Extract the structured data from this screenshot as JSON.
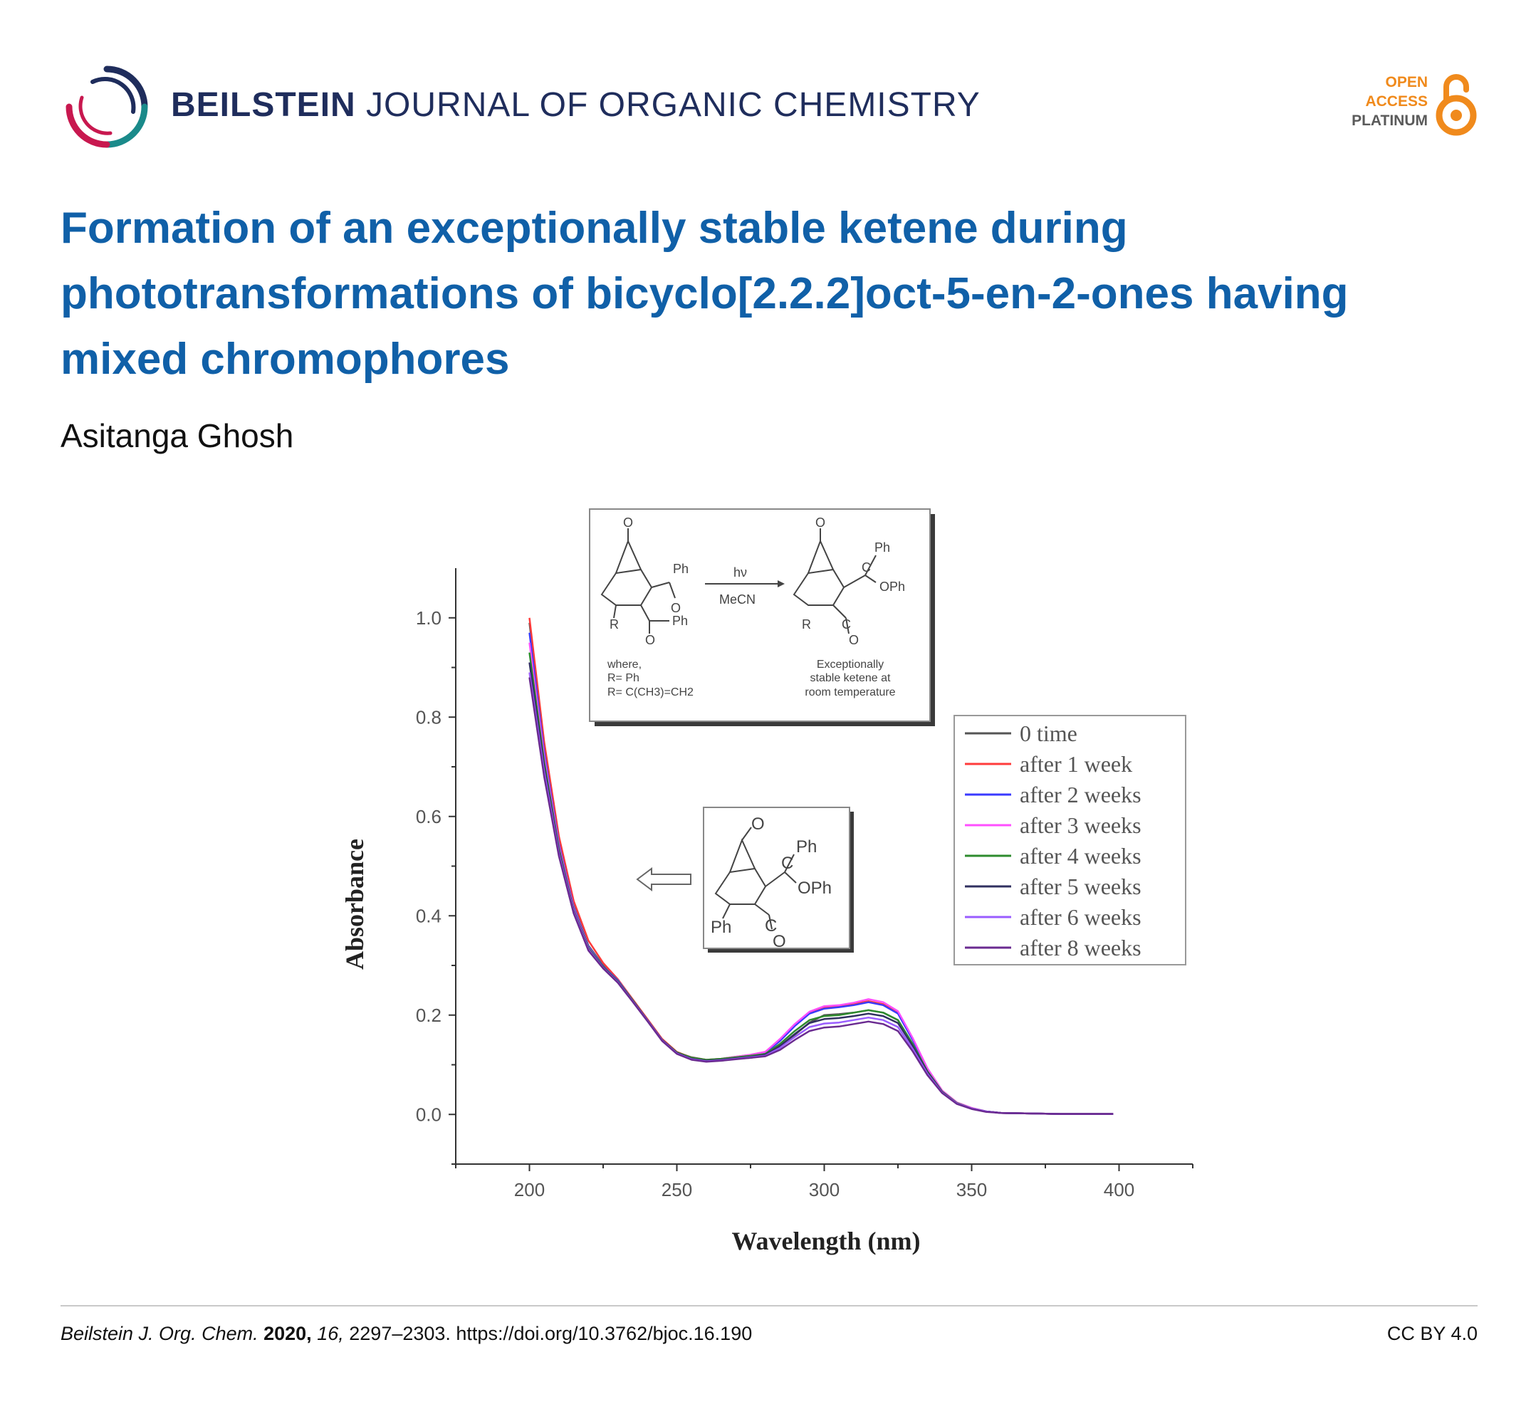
{
  "header": {
    "journal_bold": "BEILSTEIN",
    "journal_light": "JOURNAL OF ORGANIC CHEMISTRY",
    "open_access": [
      "OPEN",
      "ACCESS",
      "PLATINUM"
    ]
  },
  "article": {
    "title": "Formation of an exceptionally stable ketene during phototransformations of bicyclo[2.2.2]oct-5-en-2-ones having mixed chromophores",
    "author": "Asitanga Ghosh"
  },
  "scheme": {
    "reagent_top": "hν",
    "reagent_bottom": "MeCN",
    "where_label": "where,",
    "r1": "R= Ph",
    "r2": "R= C(CH3)=CH2",
    "product_note": [
      "Exceptionally",
      "stable ketene at",
      "room temperature"
    ],
    "labels": {
      "O": "O",
      "Ph": "Ph",
      "R": "R",
      "C": "C",
      "OPh": "OPh"
    }
  },
  "chart_data": {
    "type": "line",
    "xlabel": "Wavelength (nm)",
    "ylabel": "Absorbance",
    "xlim": [
      175,
      425
    ],
    "ylim": [
      -0.1,
      1.1
    ],
    "xticks": [
      200,
      250,
      300,
      350,
      400
    ],
    "yticks": [
      0.0,
      0.2,
      0.4,
      0.6,
      0.8,
      1.0
    ],
    "x": [
      200,
      205,
      210,
      215,
      220,
      225,
      230,
      235,
      240,
      245,
      250,
      255,
      260,
      265,
      270,
      275,
      280,
      285,
      290,
      295,
      300,
      305,
      310,
      315,
      320,
      325,
      330,
      335,
      340,
      345,
      350,
      355,
      360,
      370,
      380,
      390,
      398
    ],
    "legend_position": "right",
    "series": [
      {
        "name": "0 time",
        "color": "#555555",
        "values": [
          0.99,
          0.74,
          0.55,
          0.42,
          0.34,
          0.3,
          0.27,
          0.23,
          0.19,
          0.15,
          0.125,
          0.115,
          0.11,
          0.11,
          0.112,
          0.114,
          0.118,
          0.135,
          0.16,
          0.185,
          0.2,
          0.202,
          0.205,
          0.21,
          0.205,
          0.19,
          0.14,
          0.085,
          0.045,
          0.022,
          0.012,
          0.006,
          0.003,
          0.002,
          0.001,
          0.001,
          0.001
        ]
      },
      {
        "name": "after 1 week",
        "color": "#ff3b3b",
        "values": [
          1.0,
          0.75,
          0.56,
          0.43,
          0.35,
          0.305,
          0.272,
          0.232,
          0.192,
          0.152,
          0.126,
          0.114,
          0.11,
          0.112,
          0.116,
          0.12,
          0.126,
          0.15,
          0.18,
          0.205,
          0.215,
          0.218,
          0.223,
          0.228,
          0.222,
          0.205,
          0.152,
          0.092,
          0.048,
          0.024,
          0.013,
          0.006,
          0.003,
          0.002,
          0.001,
          0.001,
          0.001
        ]
      },
      {
        "name": "after 2 weeks",
        "color": "#3a3aff",
        "values": [
          0.97,
          0.73,
          0.545,
          0.418,
          0.338,
          0.298,
          0.27,
          0.23,
          0.19,
          0.15,
          0.124,
          0.112,
          0.108,
          0.11,
          0.114,
          0.118,
          0.124,
          0.148,
          0.178,
          0.203,
          0.213,
          0.216,
          0.22,
          0.226,
          0.22,
          0.203,
          0.15,
          0.09,
          0.047,
          0.023,
          0.012,
          0.006,
          0.003,
          0.002,
          0.001,
          0.001,
          0.001
        ]
      },
      {
        "name": "after 3 weeks",
        "color": "#ff4fff",
        "values": [
          0.95,
          0.72,
          0.54,
          0.415,
          0.336,
          0.297,
          0.268,
          0.229,
          0.19,
          0.15,
          0.124,
          0.113,
          0.11,
          0.112,
          0.116,
          0.12,
          0.126,
          0.152,
          0.182,
          0.207,
          0.218,
          0.22,
          0.225,
          0.232,
          0.226,
          0.208,
          0.154,
          0.093,
          0.048,
          0.024,
          0.013,
          0.006,
          0.003,
          0.002,
          0.001,
          0.001,
          0.001
        ]
      },
      {
        "name": "after 4 weeks",
        "color": "#2e8b2e",
        "values": [
          0.93,
          0.71,
          0.535,
          0.412,
          0.335,
          0.297,
          0.268,
          0.23,
          0.19,
          0.15,
          0.125,
          0.114,
          0.11,
          0.112,
          0.115,
          0.118,
          0.122,
          0.142,
          0.168,
          0.19,
          0.198,
          0.2,
          0.205,
          0.21,
          0.205,
          0.19,
          0.142,
          0.087,
          0.046,
          0.023,
          0.012,
          0.006,
          0.003,
          0.002,
          0.001,
          0.001,
          0.001
        ]
      },
      {
        "name": "after 5 weeks",
        "color": "#303060",
        "values": [
          0.91,
          0.7,
          0.53,
          0.41,
          0.333,
          0.296,
          0.267,
          0.229,
          0.19,
          0.15,
          0.124,
          0.112,
          0.108,
          0.11,
          0.113,
          0.116,
          0.12,
          0.138,
          0.162,
          0.184,
          0.192,
          0.194,
          0.198,
          0.203,
          0.198,
          0.184,
          0.138,
          0.085,
          0.045,
          0.022,
          0.012,
          0.006,
          0.003,
          0.002,
          0.001,
          0.001,
          0.001
        ]
      },
      {
        "name": "after 6 weeks",
        "color": "#9a5cff",
        "values": [
          0.89,
          0.69,
          0.525,
          0.408,
          0.332,
          0.295,
          0.266,
          0.228,
          0.189,
          0.149,
          0.123,
          0.111,
          0.107,
          0.109,
          0.112,
          0.115,
          0.118,
          0.134,
          0.156,
          0.176,
          0.183,
          0.185,
          0.19,
          0.195,
          0.19,
          0.176,
          0.132,
          0.082,
          0.044,
          0.022,
          0.012,
          0.006,
          0.003,
          0.002,
          0.001,
          0.001,
          0.001
        ]
      },
      {
        "name": "after 8 weeks",
        "color": "#6a2a90",
        "values": [
          0.88,
          0.68,
          0.52,
          0.405,
          0.33,
          0.294,
          0.265,
          0.227,
          0.188,
          0.148,
          0.122,
          0.11,
          0.106,
          0.108,
          0.111,
          0.114,
          0.117,
          0.13,
          0.15,
          0.168,
          0.175,
          0.177,
          0.182,
          0.187,
          0.182,
          0.168,
          0.127,
          0.079,
          0.043,
          0.021,
          0.011,
          0.005,
          0.003,
          0.002,
          0.001,
          0.001,
          0.001
        ]
      }
    ]
  },
  "footer": {
    "journal": "Beilstein J. Org. Chem.",
    "year": "2020,",
    "volume": "16,",
    "pages_doi": "2297–2303. https://doi.org/10.3762/bjoc.16.190",
    "license": "CC BY 4.0"
  },
  "colors": {
    "title": "#1060a8",
    "journal": "#1f2d5c",
    "open_access": "#f08a1c"
  }
}
